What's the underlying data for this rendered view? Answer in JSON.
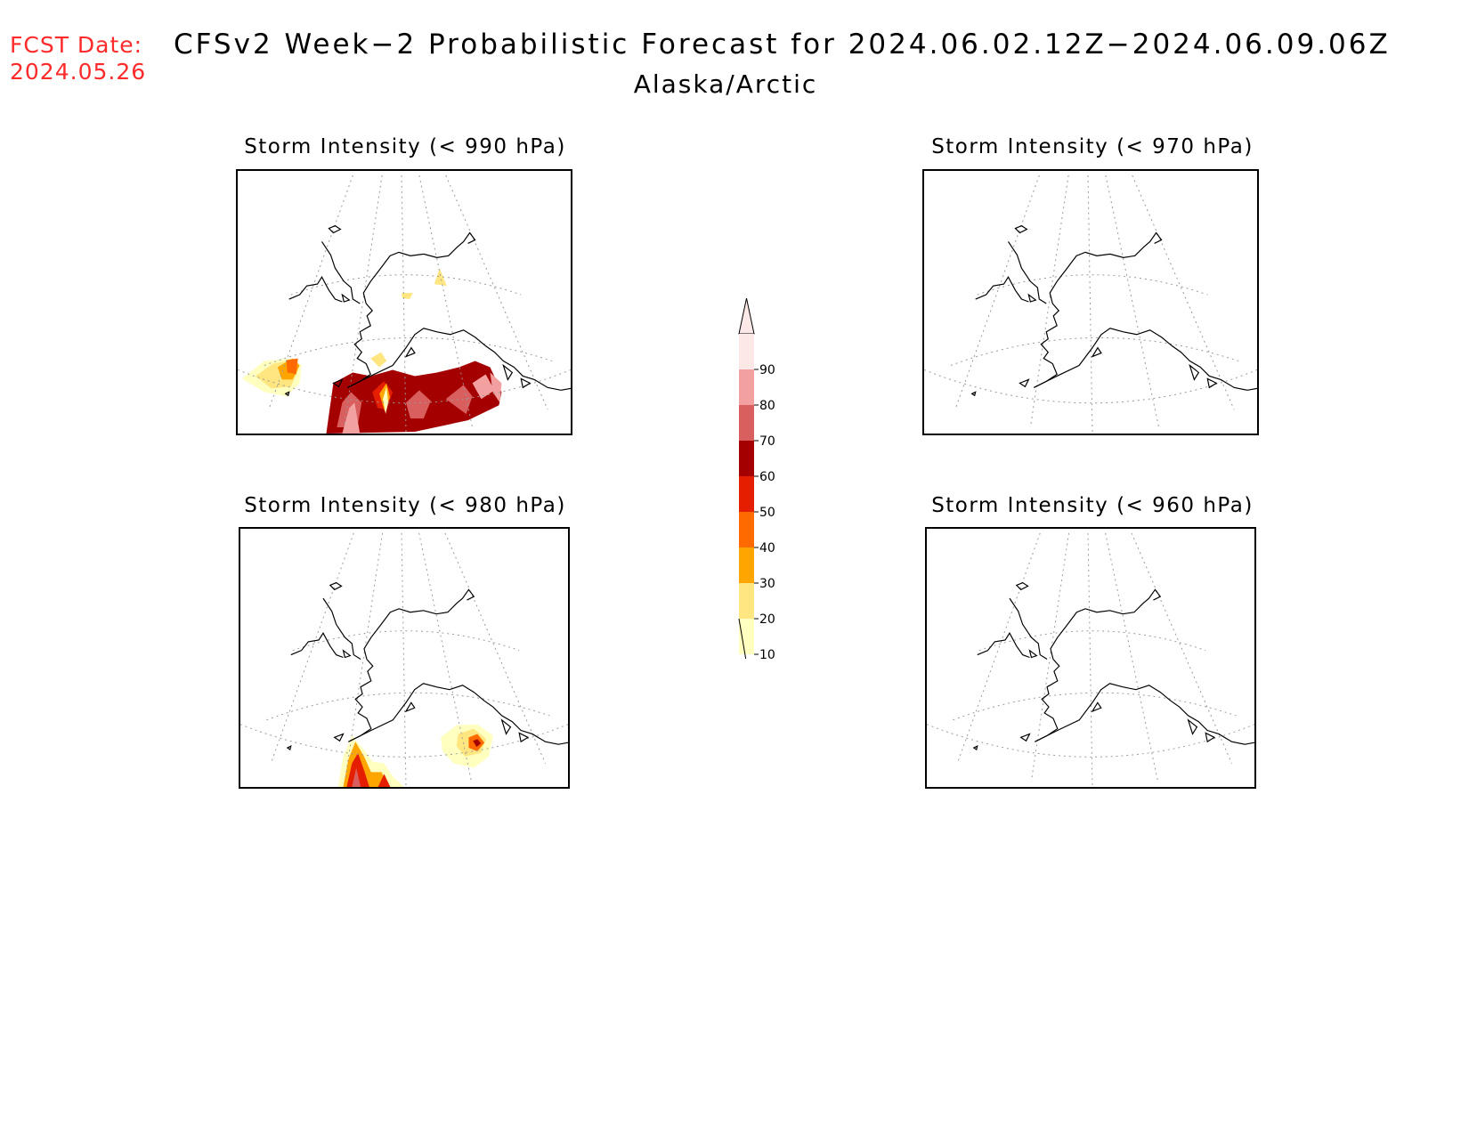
{
  "fcst": {
    "line1": "FCST Date:",
    "line2": "2024.05.26"
  },
  "title": "CFSv2 Week−2 Probabilistic Forecast for 2024.06.02.12Z−2024.06.09.06Z",
  "region": "Alaska/Arctic",
  "panels": [
    {
      "id": "p990",
      "title": "Storm Intensity (< 990 hPa)",
      "threshold_hpa": 990
    },
    {
      "id": "p970",
      "title": "Storm Intensity (< 970 hPa)",
      "threshold_hpa": 970
    },
    {
      "id": "p980",
      "title": "Storm Intensity (< 980 hPa)",
      "threshold_hpa": 980
    },
    {
      "id": "p960",
      "title": "Storm Intensity (< 960 hPa)",
      "threshold_hpa": 960
    }
  ],
  "colorbar": {
    "labels": [
      "10",
      "20",
      "30",
      "40",
      "50",
      "60",
      "70",
      "80",
      "90"
    ],
    "colors": [
      "#ffffc0",
      "#ffe680",
      "#ffa500",
      "#ff6a00",
      "#e61e00",
      "#a50000",
      "#d95e5e",
      "#f2a0a0",
      "#fde8e8"
    ]
  },
  "colors": {
    "fcst_text": "#ff2a2a",
    "coastline": "#000000",
    "grid": "#999999"
  }
}
